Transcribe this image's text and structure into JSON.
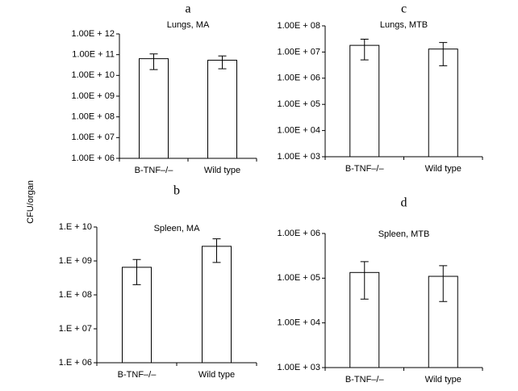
{
  "y_label": "CFU/organ",
  "chart_data": [
    {
      "type": "bar",
      "title": "a",
      "subtitle": "Lungs, MA",
      "log_scale": true,
      "color": "#ffffff",
      "categories": [
        "B-TNF–/–",
        "Wild type"
      ],
      "values": [
        64000000000,
        54000000000
      ],
      "errors": [
        45000000000,
        33000000000
      ],
      "ylim": [
        1000000,
        1000000000000
      ],
      "yticks": [
        {
          "value": 1000000,
          "label": "1.00E + 06"
        },
        {
          "value": 10000000,
          "label": "1.00E + 07"
        },
        {
          "value": 100000000,
          "label": "1.00E + 08"
        },
        {
          "value": 1000000000,
          "label": "1.00E + 09"
        },
        {
          "value": 10000000000,
          "label": "1.00E + 10"
        },
        {
          "value": 100000000000,
          "label": "1.00E + 11"
        },
        {
          "value": 1000000000000,
          "label": "1.00E + 12"
        }
      ]
    },
    {
      "type": "bar",
      "title": "b",
      "subtitle": "Spleen, MA",
      "log_scale": true,
      "color": "#ffffff",
      "categories": [
        "B-TNF–/–",
        "Wild type"
      ],
      "values": [
        650000000,
        2700000000
      ],
      "errors": [
        450000000,
        1800000000
      ],
      "ylim": [
        1000000,
        10000000000
      ],
      "yticks": [
        {
          "value": 1000000,
          "label": "1.E + 06"
        },
        {
          "value": 10000000,
          "label": "1.E + 07"
        },
        {
          "value": 100000000,
          "label": "1.E + 08"
        },
        {
          "value": 1000000000,
          "label": "1.E + 09"
        },
        {
          "value": 10000000000,
          "label": "1.E + 10"
        }
      ]
    },
    {
      "type": "bar",
      "title": "c",
      "subtitle": "Lungs, MTB",
      "log_scale": true,
      "color": "#ffffff",
      "categories": [
        "B-TNF–/–",
        "Wild type"
      ],
      "values": [
        18000000,
        13000000
      ],
      "errors": [
        13000000,
        10000000
      ],
      "ylim": [
        1000,
        100000000
      ],
      "yticks": [
        {
          "value": 1000,
          "label": "1.00E + 03"
        },
        {
          "value": 10000,
          "label": "1.00E + 04"
        },
        {
          "value": 100000,
          "label": "1.00E + 05"
        },
        {
          "value": 1000000,
          "label": "1.00E + 06"
        },
        {
          "value": 10000000,
          "label": "1.00E + 07"
        },
        {
          "value": 100000000,
          "label": "1.00E + 08"
        }
      ]
    },
    {
      "type": "bar",
      "title": "d",
      "subtitle": "Spleen, MTB",
      "log_scale": true,
      "color": "#ffffff",
      "categories": [
        "B-TNF–/–",
        "Wild type"
      ],
      "values": [
        134000,
        110000
      ],
      "errors": [
        100000,
        80000
      ],
      "ylim": [
        1000,
        1000000
      ],
      "yticks": [
        {
          "value": 1000,
          "label": "1.00E + 03"
        },
        {
          "value": 10000,
          "label": "1.00E + 04"
        },
        {
          "value": 100000,
          "label": "1.00E + 05"
        },
        {
          "value": 1000000,
          "label": "1.00E + 06"
        }
      ]
    }
  ]
}
